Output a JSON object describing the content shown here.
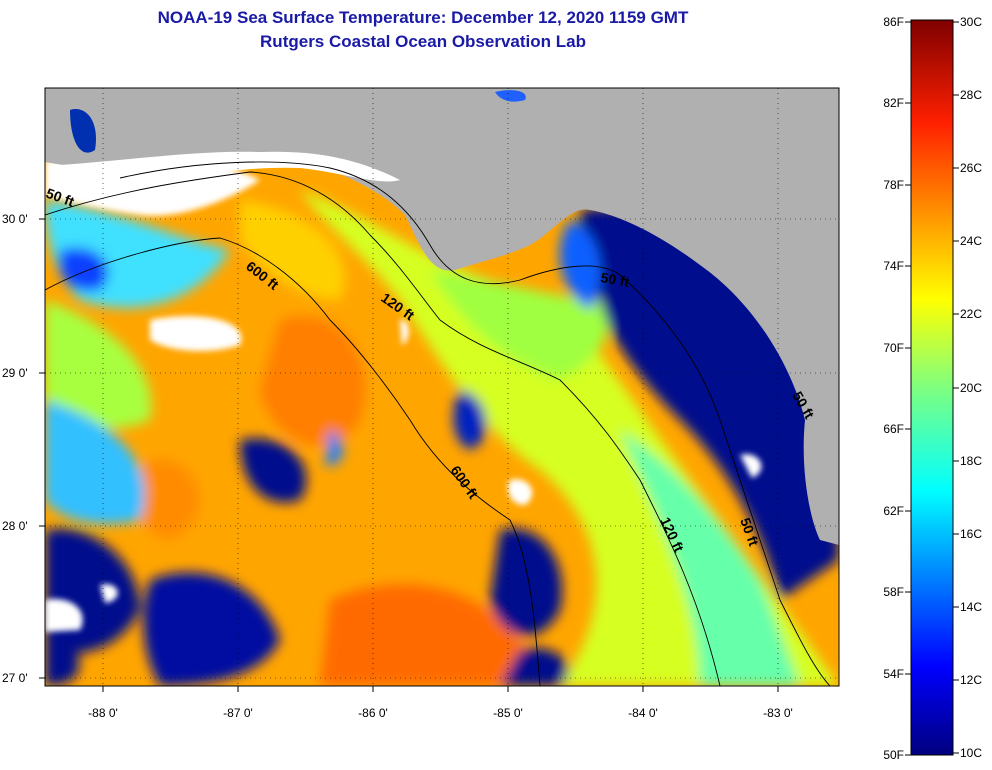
{
  "title": "NOAA-19 Sea Surface Temperature:  December 12, 2020 1159 GMT",
  "subtitle": "Rutgers Coastal Ocean Observation Lab",
  "map": {
    "lat_labels": [
      "30 0'",
      "29 0'",
      "28 0'",
      "27 0'"
    ],
    "lon_labels": [
      "-88 0'",
      "-87 0'",
      "-86 0'",
      "-85 0'",
      "-84 0'",
      "-83 0'"
    ],
    "contour_labels": {
      "c600a": "600 ft",
      "c120a": "120 ft",
      "c50a": "50 ft",
      "c600b": "600 ft",
      "c120b": "120 ft",
      "c50b": "50 ft",
      "c50c": "50 ft",
      "c50d": "50 ft"
    }
  },
  "colorbar": {
    "f_labels": [
      "86F",
      "82F",
      "78F",
      "74F",
      "70F",
      "66F",
      "62F",
      "58F",
      "54F",
      "50F"
    ],
    "c_labels": [
      "30C",
      "28C",
      "26C",
      "24C",
      "22C",
      "20C",
      "18C",
      "16C",
      "14C",
      "12C",
      "10C"
    ]
  },
  "colors": {
    "land": "#b0b0b0",
    "cloud": "#ffffff",
    "cold": "#000e8c",
    "warm": "#ffa000",
    "title": "#1a1aa6"
  }
}
